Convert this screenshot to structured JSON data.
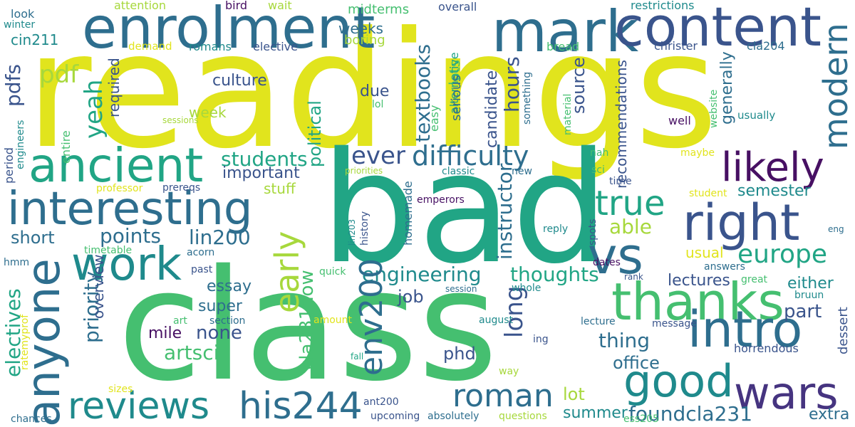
{
  "palette": {
    "yellow": "#e1e41d",
    "lime": "#a7d83c",
    "green": "#45bf70",
    "teal": "#21a585",
    "cyan": "#1f8a8c",
    "steel": "#2e6e8e",
    "blue": "#3a548c",
    "navy": "#463480",
    "purple": "#471063"
  },
  "words": [
    {
      "text": "readings",
      "color": "#e1e41d",
      "vertical": false
    },
    {
      "text": "bad",
      "color": "#21a585",
      "vertical": false
    },
    {
      "text": "class",
      "color": "#45bf70",
      "vertical": false
    },
    {
      "text": "enrolment",
      "color": "#2e6e8e",
      "vertical": false
    },
    {
      "text": "mark",
      "color": "#2e6e8e",
      "vertical": false
    },
    {
      "text": "content",
      "color": "#3a548c",
      "vertical": false
    },
    {
      "text": "ancient",
      "color": "#21a585",
      "vertical": false
    },
    {
      "text": "interesting",
      "color": "#2e6e8e",
      "vertical": false
    },
    {
      "text": "work",
      "color": "#1f8a8c",
      "vertical": false
    },
    {
      "text": "anyone",
      "color": "#2e6e8e",
      "vertical": true
    },
    {
      "text": "reviews",
      "color": "#1f8a8c",
      "vertical": false
    },
    {
      "text": "his244",
      "color": "#2e6e8e",
      "vertical": false
    },
    {
      "text": "likely",
      "color": "#471063",
      "vertical": false
    },
    {
      "text": "right",
      "color": "#3a548c",
      "vertical": false
    },
    {
      "text": "vs",
      "color": "#2e6e8e",
      "vertical": false
    },
    {
      "text": "thanks",
      "color": "#45bf70",
      "vertical": false
    },
    {
      "text": "intro",
      "color": "#2e6e8e",
      "vertical": false
    },
    {
      "text": "good",
      "color": "#1f8a8c",
      "vertical": false
    },
    {
      "text": "wars",
      "color": "#463480",
      "vertical": false
    },
    {
      "text": "true",
      "color": "#21a585",
      "vertical": false
    },
    {
      "text": "europe",
      "color": "#21a585",
      "vertical": false
    },
    {
      "text": "modern",
      "color": "#2e6e8e",
      "vertical": true
    },
    {
      "text": "early",
      "color": "#a7d83c",
      "vertical": true
    },
    {
      "text": "difficulty",
      "color": "#2e6e8e",
      "vertical": false
    },
    {
      "text": "ever",
      "color": "#3a548c",
      "vertical": false
    },
    {
      "text": "roman",
      "color": "#2e6e8e",
      "vertical": false
    },
    {
      "text": "engineering",
      "color": "#1f8a8c",
      "vertical": false
    },
    {
      "text": "thoughts",
      "color": "#21a585",
      "vertical": false
    },
    {
      "text": "foundcla231",
      "color": "#2e6e8e",
      "vertical": false
    },
    {
      "text": "env200",
      "color": "#2e6e8e",
      "vertical": true
    },
    {
      "text": "lin200",
      "color": "#2e6e8e",
      "vertical": false
    },
    {
      "text": "points",
      "color": "#2e6e8e",
      "vertical": false
    },
    {
      "text": "artsci",
      "color": "#45bf70",
      "vertical": false
    },
    {
      "text": "none",
      "color": "#3a548c",
      "vertical": false
    },
    {
      "text": "students",
      "color": "#21a585",
      "vertical": false
    },
    {
      "text": "yeah",
      "color": "#21a585",
      "vertical": true
    },
    {
      "text": "pdfs",
      "color": "#3a548c",
      "vertical": true
    },
    {
      "text": "pdf",
      "color": "#a7d83c",
      "vertical": false
    },
    {
      "text": "textbooks",
      "color": "#2e6e8e",
      "vertical": true
    },
    {
      "text": "hours",
      "color": "#3a548c",
      "vertical": true
    },
    {
      "text": "candidate",
      "color": "#3a548c",
      "vertical": true
    },
    {
      "text": "instructor",
      "color": "#2e6e8e",
      "vertical": true
    },
    {
      "text": "recommendations",
      "color": "#3a548c",
      "vertical": true
    },
    {
      "text": "source",
      "color": "#3a548c",
      "vertical": true
    },
    {
      "text": "generally",
      "color": "#2e6e8e",
      "vertical": true
    },
    {
      "text": "semester",
      "color": "#1f8a8c",
      "vertical": false
    },
    {
      "text": "able",
      "color": "#a7d83c",
      "vertical": false
    },
    {
      "text": "usual",
      "color": "#e1e41d",
      "vertical": false
    },
    {
      "text": "lectures",
      "color": "#3a548c",
      "vertical": false
    },
    {
      "text": "either",
      "color": "#1f8a8c",
      "vertical": false
    },
    {
      "text": "part",
      "color": "#3a548c",
      "vertical": false
    },
    {
      "text": "thing",
      "color": "#2e6e8e",
      "vertical": false
    },
    {
      "text": "office",
      "color": "#2e6e8e",
      "vertical": false
    },
    {
      "text": "long",
      "color": "#3a548c",
      "vertical": true
    },
    {
      "text": "job",
      "color": "#3a548c",
      "vertical": false
    },
    {
      "text": "phd",
      "color": "#3a548c",
      "vertical": false
    },
    {
      "text": "lot",
      "color": "#a7d83c",
      "vertical": false
    },
    {
      "text": "summer",
      "color": "#1f8a8c",
      "vertical": false
    },
    {
      "text": "culture",
      "color": "#3a548c",
      "vertical": false
    },
    {
      "text": "important",
      "color": "#3a548c",
      "vertical": false
    },
    {
      "text": "stuff",
      "color": "#a7d83c",
      "vertical": false
    },
    {
      "text": "short",
      "color": "#2e6e8e",
      "vertical": false
    },
    {
      "text": "priority",
      "color": "#2e6e8e",
      "vertical": true
    },
    {
      "text": "overview",
      "color": "#3a548c",
      "vertical": true
    },
    {
      "text": "electives",
      "color": "#21a585",
      "vertical": true
    },
    {
      "text": "essay",
      "color": "#2e6e8e",
      "vertical": false
    },
    {
      "text": "super",
      "color": "#2e6e8e",
      "vertical": false
    },
    {
      "text": "mile",
      "color": "#471063",
      "vertical": false
    },
    {
      "text": "cla231how",
      "color": "#45bf70",
      "vertical": true
    },
    {
      "text": "political",
      "color": "#21a585",
      "vertical": true
    },
    {
      "text": "due",
      "color": "#3a548c",
      "vertical": false
    },
    {
      "text": "weeks",
      "color": "#2e6e8e",
      "vertical": false
    },
    {
      "text": "midterms",
      "color": "#45bf70",
      "vertical": false
    },
    {
      "text": "boring",
      "color": "#a7d83c",
      "vertical": false
    },
    {
      "text": "lots",
      "color": "#45bf70",
      "vertical": true
    },
    {
      "text": "alternative",
      "color": "#21a585",
      "vertical": true
    },
    {
      "text": "easy",
      "color": "#45bf70",
      "vertical": true
    },
    {
      "text": "serious",
      "color": "#2e6e8e",
      "vertical": true
    },
    {
      "text": "week",
      "color": "#a7d83c",
      "vertical": false
    },
    {
      "text": "required",
      "color": "#3a548c",
      "vertical": true
    },
    {
      "text": "romans",
      "color": "#1f8a8c",
      "vertical": false
    },
    {
      "text": "elective",
      "color": "#3a548c",
      "vertical": false
    },
    {
      "text": "demand",
      "color": "#e1e41d",
      "vertical": false
    },
    {
      "text": "cin211",
      "color": "#1f8a8c",
      "vertical": false
    },
    {
      "text": "look",
      "color": "#2e6e8e",
      "vertical": false
    },
    {
      "text": "winter",
      "color": "#1f8a8c",
      "vertical": false
    },
    {
      "text": "attention",
      "color": "#a7d83c",
      "vertical": false
    },
    {
      "text": "bird",
      "color": "#471063",
      "vertical": false
    },
    {
      "text": "wait",
      "color": "#a7d83c",
      "vertical": false
    },
    {
      "text": "overall",
      "color": "#3a548c",
      "vertical": false
    },
    {
      "text": "restrictions",
      "color": "#1f8a8c",
      "vertical": false
    },
    {
      "text": "christer",
      "color": "#3a548c",
      "vertical": false
    },
    {
      "text": "cla204",
      "color": "#2e6e8e",
      "vertical": false
    },
    {
      "text": "bread",
      "color": "#45bf70",
      "vertical": false
    },
    {
      "text": "lol",
      "color": "#45bf70",
      "vertical": false
    },
    {
      "text": "something",
      "color": "#2e6e8e",
      "vertical": true
    },
    {
      "text": "material",
      "color": "#45bf70",
      "vertical": true
    },
    {
      "text": "website",
      "color": "#45bf70",
      "vertical": true
    },
    {
      "text": "well",
      "color": "#471063",
      "vertical": false
    },
    {
      "text": "usually",
      "color": "#1f8a8c",
      "vertical": false
    },
    {
      "text": "maybe",
      "color": "#e1e41d",
      "vertical": false
    },
    {
      "text": "nah",
      "color": "#45bf70",
      "vertical": false
    },
    {
      "text": "sci",
      "color": "#45bf70",
      "vertical": false
    },
    {
      "text": "time",
      "color": "#3a548c",
      "vertical": false
    },
    {
      "text": "student",
      "color": "#e1e41d",
      "vertical": false
    },
    {
      "text": "classic",
      "color": "#1f8a8c",
      "vertical": false
    },
    {
      "text": "new",
      "color": "#2e6e8e",
      "vertical": false
    },
    {
      "text": "priorities",
      "color": "#a7d83c",
      "vertical": false
    },
    {
      "text": "professor",
      "color": "#e1e41d",
      "vertical": false
    },
    {
      "text": "prereqs",
      "color": "#3a548c",
      "vertical": false
    },
    {
      "text": "emperors",
      "color": "#471063",
      "vertical": false
    },
    {
      "text": "homemade",
      "color": "#2e6e8e",
      "vertical": true
    },
    {
      "text": "history",
      "color": "#3a548c",
      "vertical": true
    },
    {
      "text": "lin203",
      "color": "#1f8a8c",
      "vertical": true
    },
    {
      "text": "reply",
      "color": "#1f8a8c",
      "vertical": false
    },
    {
      "text": "spots",
      "color": "#3a548c",
      "vertical": true
    },
    {
      "text": "dates",
      "color": "#471063",
      "vertical": false
    },
    {
      "text": "rank",
      "color": "#3a548c",
      "vertical": false
    },
    {
      "text": "answers",
      "color": "#2e6e8e",
      "vertical": false
    },
    {
      "text": "great",
      "color": "#45bf70",
      "vertical": false
    },
    {
      "text": "bruun",
      "color": "#1f8a8c",
      "vertical": false
    },
    {
      "text": "whole",
      "color": "#1f8a8c",
      "vertical": false
    },
    {
      "text": "eng",
      "color": "#2e6e8e",
      "vertical": false
    },
    {
      "text": "dessert",
      "color": "#3a548c",
      "vertical": true
    },
    {
      "text": "message",
      "color": "#3a548c",
      "vertical": false
    },
    {
      "text": "lecture",
      "color": "#2e6e8e",
      "vertical": false
    },
    {
      "text": "horrendous",
      "color": "#3a548c",
      "vertical": false
    },
    {
      "text": "extra",
      "color": "#2e6e8e",
      "vertical": false
    },
    {
      "text": "ess205",
      "color": "#45bf70",
      "vertical": false
    },
    {
      "text": "questions",
      "color": "#a7d83c",
      "vertical": false
    },
    {
      "text": "absolutely",
      "color": "#2e6e8e",
      "vertical": false
    },
    {
      "text": "upcoming",
      "color": "#3a548c",
      "vertical": false
    },
    {
      "text": "ant200",
      "color": "#3a548c",
      "vertical": false
    },
    {
      "text": "fall",
      "color": "#21a585",
      "vertical": false
    },
    {
      "text": "august",
      "color": "#1f8a8c",
      "vertical": false
    },
    {
      "text": "ing",
      "color": "#3a548c",
      "vertical": false
    },
    {
      "text": "way",
      "color": "#a7d83c",
      "vertical": false
    },
    {
      "text": "amount",
      "color": "#e1e41d",
      "vertical": false
    },
    {
      "text": "session",
      "color": "#2e6e8e",
      "vertical": false
    },
    {
      "text": "quick",
      "color": "#45bf70",
      "vertical": false
    },
    {
      "text": "past",
      "color": "#3a548c",
      "vertical": false
    },
    {
      "text": "acorn",
      "color": "#2e6e8e",
      "vertical": false
    },
    {
      "text": "section",
      "color": "#2e6e8e",
      "vertical": false
    },
    {
      "text": "art",
      "color": "#45bf70",
      "vertical": false
    },
    {
      "text": "timetable",
      "color": "#45bf70",
      "vertical": false
    },
    {
      "text": "hmm",
      "color": "#2e6e8e",
      "vertical": false
    },
    {
      "text": "ratemyprof",
      "color": "#e1e41d",
      "vertical": true
    },
    {
      "text": "sizes",
      "color": "#e1e41d",
      "vertical": false
    },
    {
      "text": "chances",
      "color": "#2e6e8e",
      "vertical": false
    },
    {
      "text": "period",
      "color": "#3a548c",
      "vertical": true
    },
    {
      "text": "engineers",
      "color": "#1f8a8c",
      "vertical": true
    },
    {
      "text": "entire",
      "color": "#45bf70",
      "vertical": true
    },
    {
      "text": "sessions",
      "color": "#a7d83c",
      "vertical": false
    }
  ]
}
